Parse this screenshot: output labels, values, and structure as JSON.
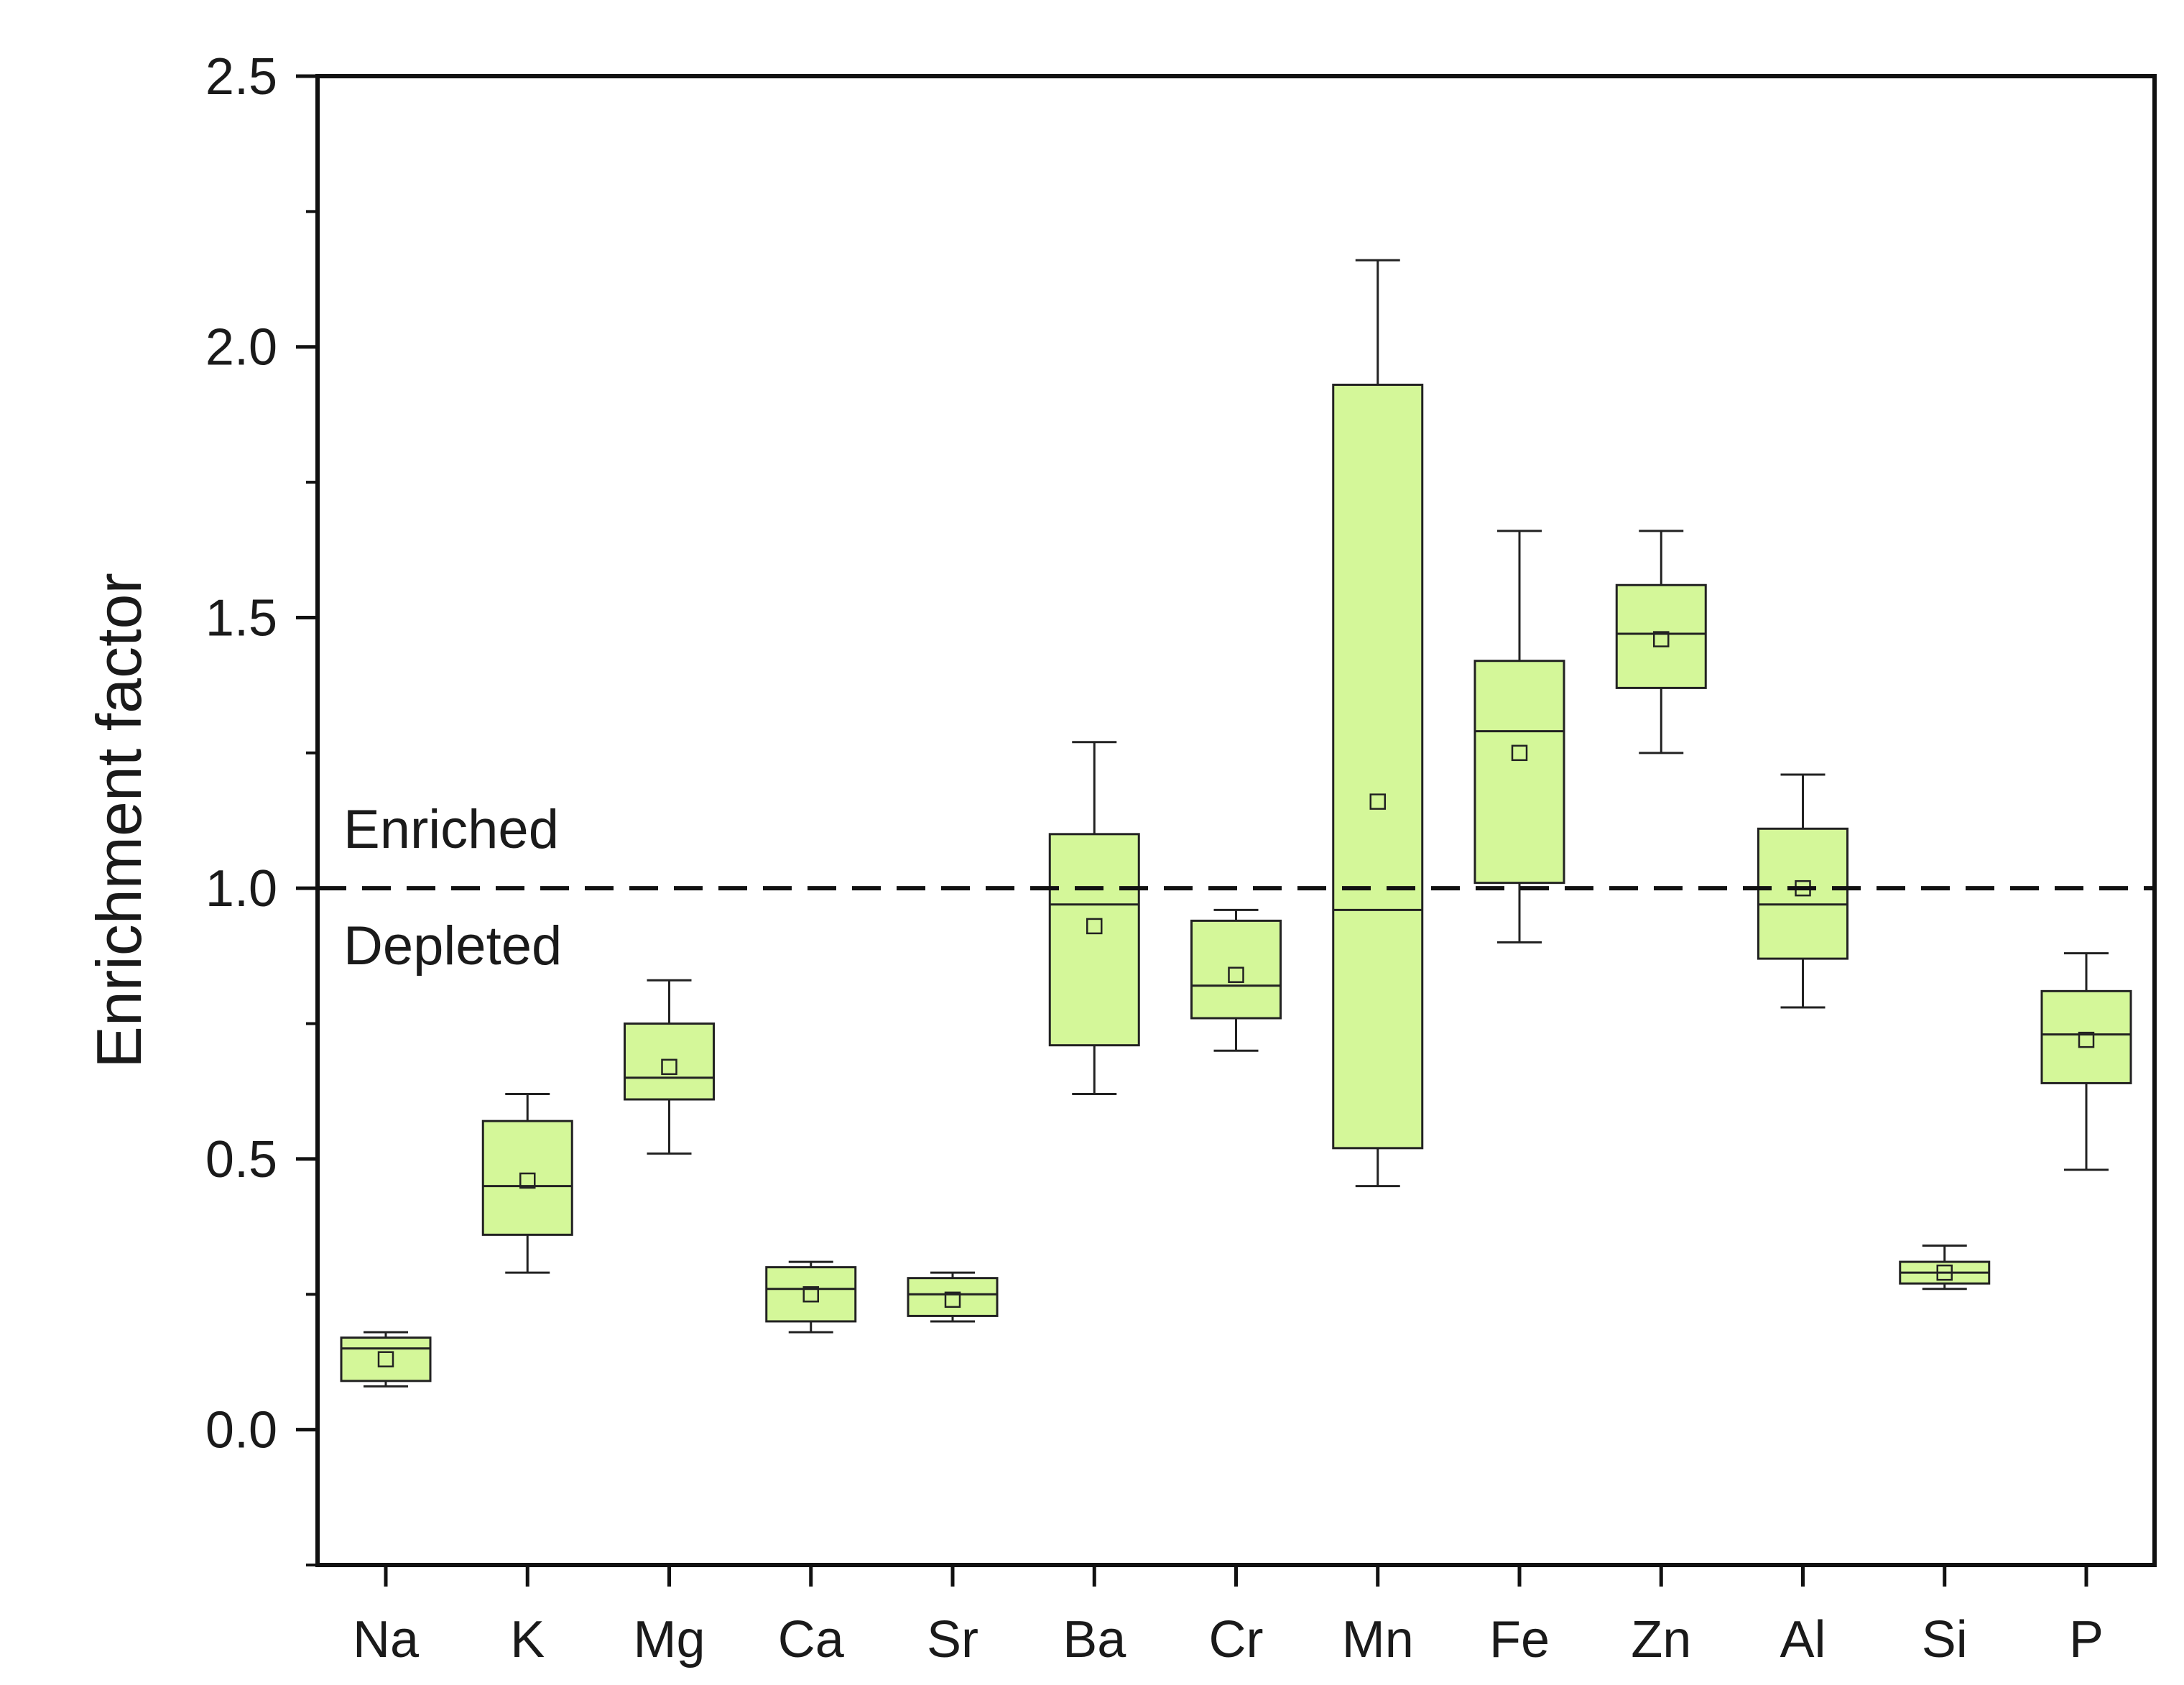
{
  "chart_data": {
    "type": "box",
    "title": "",
    "xlabel": "",
    "ylabel": "Enrichment factor",
    "ylim": [
      -0.25,
      2.5
    ],
    "yticks": [
      0.0,
      0.5,
      1.0,
      1.5,
      2.0,
      2.5
    ],
    "ytick_labels": [
      "0.0",
      "0.5",
      "1.0",
      "1.5",
      "2.0",
      "2.5"
    ],
    "reference_line": {
      "value": 1.0,
      "style": "dashed",
      "label_above": "Enriched",
      "label_below": "Depleted"
    },
    "box_color": "#d4f799",
    "edge_color": "#222222",
    "categories": [
      "Na",
      "K",
      "Mg",
      "Ca",
      "Sr",
      "Ba",
      "Cr",
      "Mn",
      "Fe",
      "Zn",
      "Al",
      "Si",
      "P"
    ],
    "boxes": [
      {
        "name": "Na",
        "whisker_low": 0.08,
        "q1": 0.09,
        "median": 0.15,
        "q3": 0.17,
        "whisker_high": 0.18,
        "mean": 0.13
      },
      {
        "name": "K",
        "whisker_low": 0.29,
        "q1": 0.36,
        "median": 0.45,
        "q3": 0.57,
        "whisker_high": 0.62,
        "mean": 0.46
      },
      {
        "name": "Mg",
        "whisker_low": 0.51,
        "q1": 0.61,
        "median": 0.65,
        "q3": 0.75,
        "whisker_high": 0.83,
        "mean": 0.67
      },
      {
        "name": "Ca",
        "whisker_low": 0.18,
        "q1": 0.2,
        "median": 0.26,
        "q3": 0.3,
        "whisker_high": 0.31,
        "mean": 0.25
      },
      {
        "name": "Sr",
        "whisker_low": 0.2,
        "q1": 0.21,
        "median": 0.25,
        "q3": 0.28,
        "whisker_high": 0.29,
        "mean": 0.24
      },
      {
        "name": "Ba",
        "whisker_low": 0.62,
        "q1": 0.71,
        "median": 0.97,
        "q3": 1.1,
        "whisker_high": 1.27,
        "mean": 0.93
      },
      {
        "name": "Cr",
        "whisker_low": 0.7,
        "q1": 0.76,
        "median": 0.82,
        "q3": 0.94,
        "whisker_high": 0.96,
        "mean": 0.84
      },
      {
        "name": "Mn",
        "whisker_low": 0.45,
        "q1": 0.52,
        "median": 0.96,
        "q3": 1.93,
        "whisker_high": 2.16,
        "mean": 1.16
      },
      {
        "name": "Fe",
        "whisker_low": 0.9,
        "q1": 1.01,
        "median": 1.29,
        "q3": 1.42,
        "whisker_high": 1.66,
        "mean": 1.25
      },
      {
        "name": "Zn",
        "whisker_low": 1.25,
        "q1": 1.37,
        "median": 1.47,
        "q3": 1.56,
        "whisker_high": 1.66,
        "mean": 1.46
      },
      {
        "name": "Al",
        "whisker_low": 0.78,
        "q1": 0.87,
        "median": 0.97,
        "q3": 1.11,
        "whisker_high": 1.21,
        "mean": 1.0
      },
      {
        "name": "Si",
        "whisker_low": 0.26,
        "q1": 0.27,
        "median": 0.29,
        "q3": 0.31,
        "whisker_high": 0.34,
        "mean": 0.29
      },
      {
        "name": "P",
        "whisker_low": 0.48,
        "q1": 0.64,
        "median": 0.73,
        "q3": 0.81,
        "whisker_high": 0.88,
        "mean": 0.72
      }
    ]
  }
}
